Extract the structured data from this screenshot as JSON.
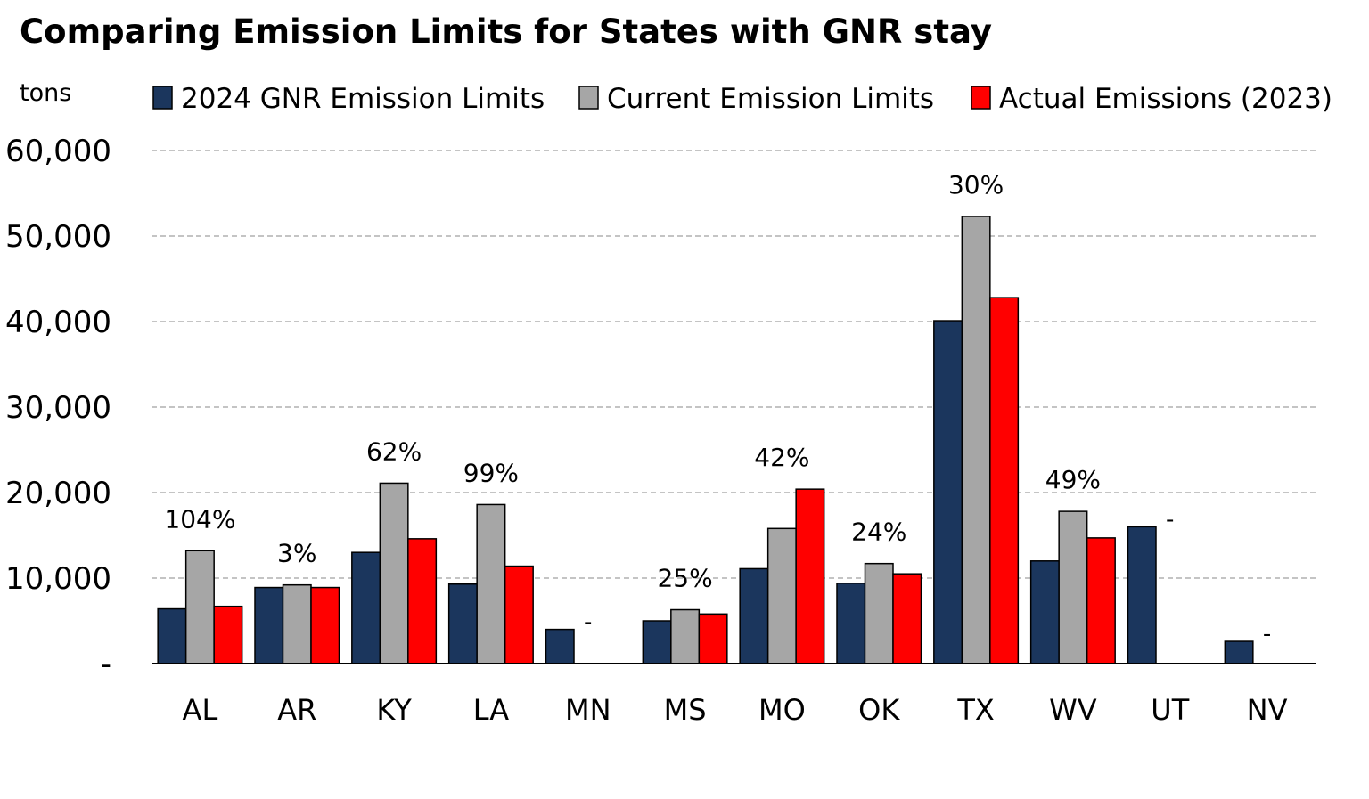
{
  "chart_data": {
    "type": "bar",
    "title": "Comparing Emission Limits for States with GNR stay",
    "ylabel": "tons",
    "xlabel": "",
    "ylim": [
      0,
      60000
    ],
    "yticks": [
      0,
      10000,
      20000,
      30000,
      40000,
      50000,
      60000
    ],
    "ytick_labels": [
      "-",
      "10,000",
      "20,000",
      "30,000",
      "40,000",
      "50,000",
      "60,000"
    ],
    "grid": "horizontal dashed",
    "legend_position": "top",
    "categories": [
      "AL",
      "AR",
      "KY",
      "LA",
      "MN",
      "MS",
      "MO",
      "OK",
      "TX",
      "WV",
      "UT",
      "NV"
    ],
    "series": [
      {
        "name": "2024 GNR Emission Limits",
        "color": "#1b365d",
        "values": [
          6400,
          8900,
          13000,
          9300,
          4000,
          5000,
          11100,
          9400,
          40100,
          12000,
          16000,
          2600
        ]
      },
      {
        "name": "Current Emission Limits",
        "color": "#a6a6a6",
        "values": [
          13200,
          9200,
          21100,
          18600,
          null,
          6300,
          15800,
          11700,
          52300,
          17800,
          null,
          null
        ]
      },
      {
        "name": "Actual Emissions (2023)",
        "color": "#ff0000",
        "values": [
          6700,
          8900,
          14600,
          11400,
          null,
          5800,
          20400,
          10500,
          42800,
          14700,
          null,
          null
        ]
      }
    ],
    "annotations": [
      "104%",
      "3%",
      "62%",
      "99%",
      "-",
      "25%",
      "42%",
      "24%",
      "30%",
      "49%",
      "-",
      "-"
    ]
  }
}
